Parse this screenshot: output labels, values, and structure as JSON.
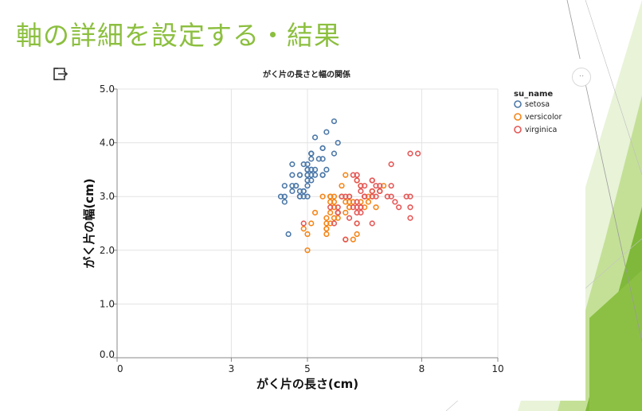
{
  "slide": {
    "title": "軸の詳細を設定する・結果"
  },
  "toolbar": {
    "export_icon": "export-icon",
    "more_label": "··"
  },
  "colors": {
    "title": "#8cbf3f",
    "setosa": "#4c78a8",
    "versicolor": "#f58518",
    "virginica": "#e45756"
  },
  "chart_data": {
    "type": "scatter",
    "title": "がく片の長さと幅の関係",
    "xlabel": "がく片の長さ(cm)",
    "ylabel": "がく片の幅(cm)",
    "xlim": [
      0,
      10
    ],
    "ylim": [
      0,
      5
    ],
    "x_ticks": [
      {
        "value": 0,
        "label": "0"
      },
      {
        "value": 3,
        "label": "3"
      },
      {
        "value": 5,
        "label": "5"
      },
      {
        "value": 8,
        "label": "8"
      },
      {
        "value": 10,
        "label": "10"
      }
    ],
    "y_ticks": [
      {
        "value": 0,
        "label": "0.0"
      },
      {
        "value": 1,
        "label": "1.0"
      },
      {
        "value": 2,
        "label": "2.0"
      },
      {
        "value": 3,
        "label": "3.0"
      },
      {
        "value": 4,
        "label": "4.0"
      },
      {
        "value": 5,
        "label": "5.0"
      }
    ],
    "grid": true,
    "legend": {
      "title": "su_name",
      "position": "top-right"
    },
    "series": [
      {
        "name": "setosa",
        "color": "#4c78a8",
        "points": [
          [
            5.1,
            3.5
          ],
          [
            4.9,
            3.0
          ],
          [
            4.7,
            3.2
          ],
          [
            4.6,
            3.1
          ],
          [
            5.0,
            3.6
          ],
          [
            5.4,
            3.9
          ],
          [
            4.6,
            3.4
          ],
          [
            5.0,
            3.4
          ],
          [
            4.4,
            2.9
          ],
          [
            4.9,
            3.1
          ],
          [
            5.4,
            3.7
          ],
          [
            4.8,
            3.4
          ],
          [
            4.8,
            3.0
          ],
          [
            4.3,
            3.0
          ],
          [
            5.8,
            4.0
          ],
          [
            5.7,
            4.4
          ],
          [
            5.4,
            3.9
          ],
          [
            5.1,
            3.5
          ],
          [
            5.7,
            3.8
          ],
          [
            5.1,
            3.8
          ],
          [
            5.4,
            3.4
          ],
          [
            5.1,
            3.7
          ],
          [
            4.6,
            3.6
          ],
          [
            5.1,
            3.3
          ],
          [
            4.8,
            3.4
          ],
          [
            5.0,
            3.0
          ],
          [
            5.0,
            3.4
          ],
          [
            5.2,
            3.5
          ],
          [
            5.2,
            3.4
          ],
          [
            4.7,
            3.2
          ],
          [
            4.8,
            3.1
          ],
          [
            5.4,
            3.4
          ],
          [
            5.2,
            4.1
          ],
          [
            5.5,
            4.2
          ],
          [
            4.9,
            3.1
          ],
          [
            5.0,
            3.2
          ],
          [
            5.5,
            3.5
          ],
          [
            4.9,
            3.6
          ],
          [
            4.4,
            3.0
          ],
          [
            5.1,
            3.4
          ],
          [
            5.0,
            3.5
          ],
          [
            4.5,
            2.3
          ],
          [
            4.4,
            3.2
          ],
          [
            5.0,
            3.5
          ],
          [
            5.1,
            3.8
          ],
          [
            4.8,
            3.0
          ],
          [
            5.1,
            3.8
          ],
          [
            4.6,
            3.2
          ],
          [
            5.3,
            3.7
          ],
          [
            5.0,
            3.3
          ]
        ]
      },
      {
        "name": "versicolor",
        "color": "#f58518",
        "points": [
          [
            7.0,
            3.2
          ],
          [
            6.4,
            3.2
          ],
          [
            6.9,
            3.1
          ],
          [
            5.5,
            2.3
          ],
          [
            6.5,
            2.8
          ],
          [
            5.7,
            2.8
          ],
          [
            6.3,
            3.3
          ],
          [
            4.9,
            2.4
          ],
          [
            6.6,
            2.9
          ],
          [
            5.2,
            2.7
          ],
          [
            5.0,
            2.0
          ],
          [
            5.9,
            3.0
          ],
          [
            6.0,
            2.2
          ],
          [
            6.1,
            2.9
          ],
          [
            5.6,
            2.9
          ],
          [
            6.7,
            3.1
          ],
          [
            5.6,
            3.0
          ],
          [
            5.8,
            2.7
          ],
          [
            6.2,
            2.2
          ],
          [
            5.6,
            2.5
          ],
          [
            5.9,
            3.2
          ],
          [
            6.1,
            2.8
          ],
          [
            6.3,
            2.5
          ],
          [
            6.1,
            2.8
          ],
          [
            6.4,
            2.9
          ],
          [
            6.6,
            3.0
          ],
          [
            6.8,
            2.8
          ],
          [
            6.7,
            3.0
          ],
          [
            6.0,
            2.9
          ],
          [
            5.7,
            2.6
          ],
          [
            5.5,
            2.4
          ],
          [
            5.5,
            2.4
          ],
          [
            5.8,
            2.7
          ],
          [
            6.0,
            2.7
          ],
          [
            5.4,
            3.0
          ],
          [
            6.0,
            3.4
          ],
          [
            6.7,
            3.1
          ],
          [
            6.3,
            2.3
          ],
          [
            5.6,
            3.0
          ],
          [
            5.5,
            2.5
          ],
          [
            5.5,
            2.6
          ],
          [
            6.1,
            3.0
          ],
          [
            5.8,
            2.6
          ],
          [
            5.0,
            2.3
          ],
          [
            5.6,
            2.7
          ],
          [
            5.7,
            3.0
          ],
          [
            5.7,
            2.9
          ],
          [
            6.2,
            2.9
          ],
          [
            5.1,
            2.5
          ],
          [
            5.7,
            2.8
          ]
        ]
      },
      {
        "name": "virginica",
        "color": "#e45756",
        "points": [
          [
            6.3,
            3.3
          ],
          [
            5.8,
            2.7
          ],
          [
            7.1,
            3.0
          ],
          [
            6.3,
            2.9
          ],
          [
            6.5,
            3.0
          ],
          [
            7.6,
            3.0
          ],
          [
            4.9,
            2.5
          ],
          [
            7.3,
            2.9
          ],
          [
            6.7,
            2.5
          ],
          [
            7.2,
            3.6
          ],
          [
            6.5,
            3.2
          ],
          [
            6.4,
            2.7
          ],
          [
            6.8,
            3.0
          ],
          [
            5.7,
            2.5
          ],
          [
            5.8,
            2.8
          ],
          [
            6.4,
            3.2
          ],
          [
            6.5,
            3.0
          ],
          [
            7.7,
            3.8
          ],
          [
            7.7,
            2.6
          ],
          [
            6.0,
            2.2
          ],
          [
            6.9,
            3.2
          ],
          [
            5.6,
            2.8
          ],
          [
            7.7,
            2.8
          ],
          [
            6.3,
            2.7
          ],
          [
            6.7,
            3.3
          ],
          [
            7.2,
            3.2
          ],
          [
            6.2,
            2.8
          ],
          [
            6.1,
            3.0
          ],
          [
            6.4,
            2.8
          ],
          [
            7.2,
            3.0
          ],
          [
            7.4,
            2.8
          ],
          [
            7.9,
            3.8
          ],
          [
            6.4,
            2.8
          ],
          [
            6.3,
            2.8
          ],
          [
            6.1,
            2.6
          ],
          [
            7.7,
            3.0
          ],
          [
            6.3,
            3.4
          ],
          [
            6.4,
            3.1
          ],
          [
            6.0,
            3.0
          ],
          [
            6.9,
            3.1
          ],
          [
            6.7,
            3.1
          ],
          [
            6.9,
            3.1
          ],
          [
            5.8,
            2.7
          ],
          [
            6.8,
            3.2
          ],
          [
            6.7,
            3.3
          ],
          [
            6.7,
            3.0
          ],
          [
            6.3,
            2.5
          ],
          [
            6.5,
            3.0
          ],
          [
            6.2,
            3.4
          ],
          [
            5.9,
            3.0
          ]
        ]
      }
    ]
  }
}
